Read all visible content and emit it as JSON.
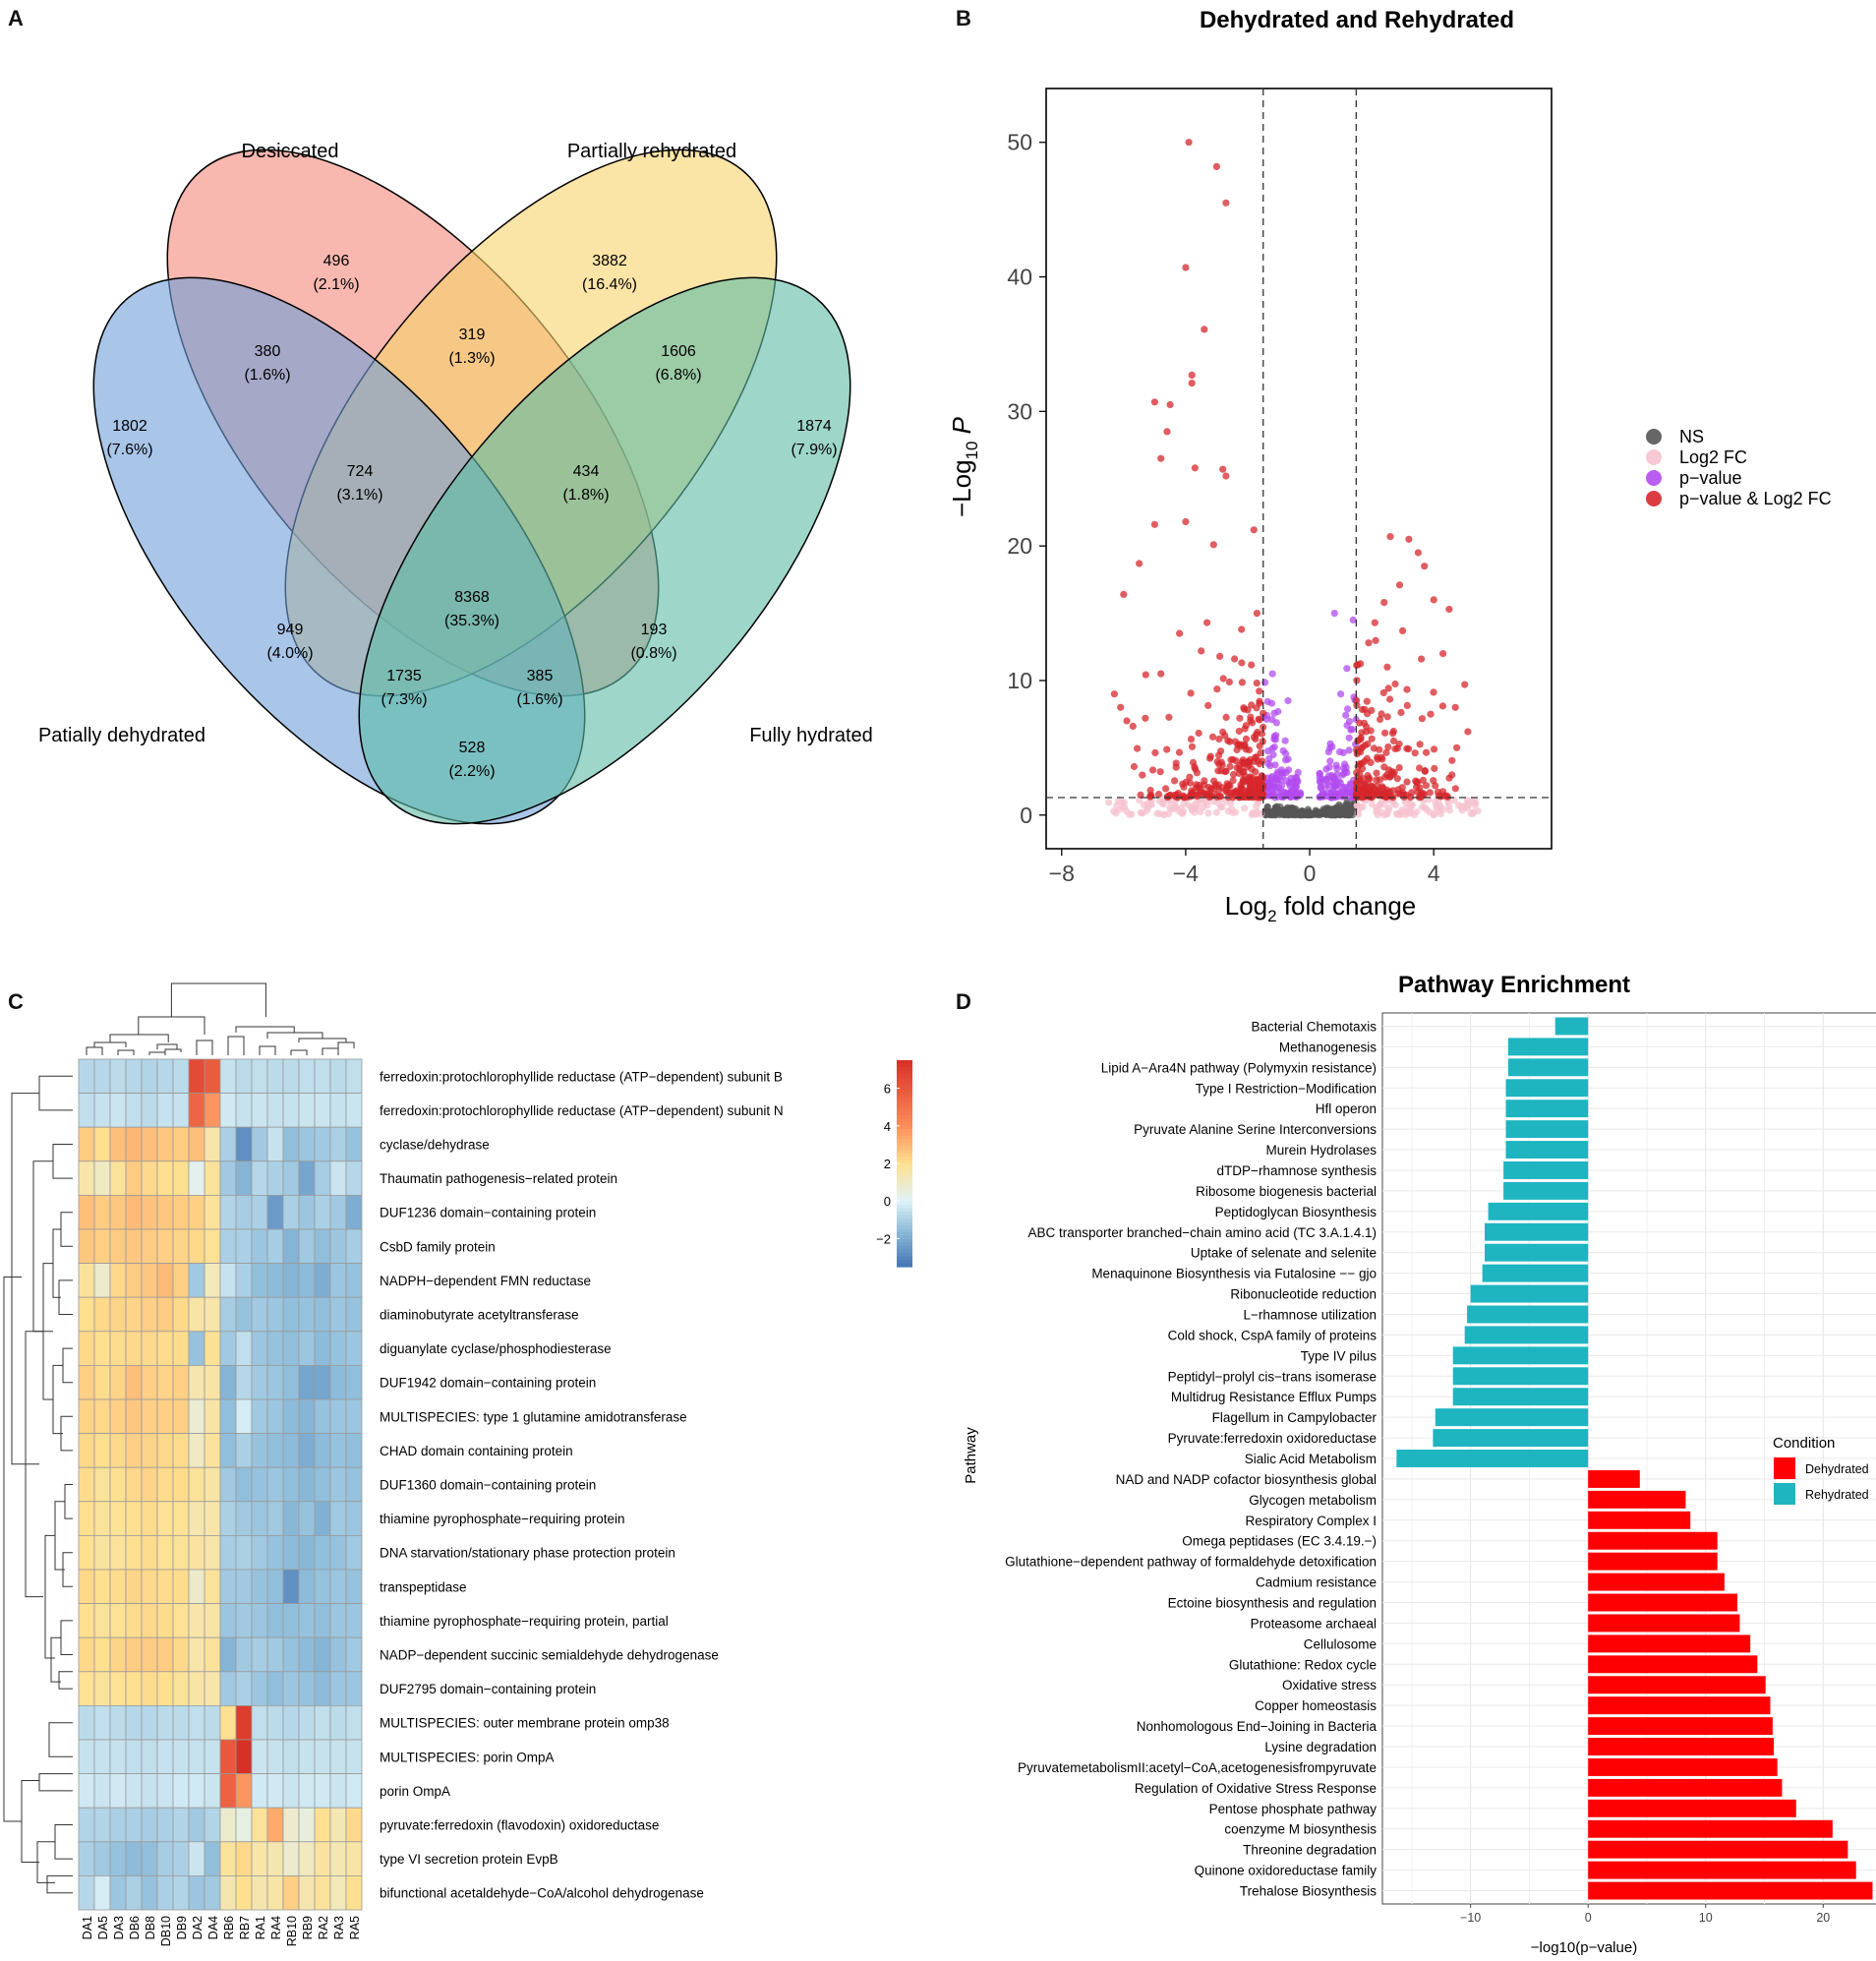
{
  "panels": {
    "a": {
      "letter": "A"
    },
    "b": {
      "letter": "B"
    },
    "c": {
      "letter": "C"
    },
    "d": {
      "letter": "D"
    }
  },
  "chart_data": [
    {
      "type": "venn",
      "sets": [
        "Desiccated",
        "Partially rehydrated",
        "Patially dehydrated",
        "Fully hydrated"
      ],
      "colors": {
        "desiccated": "#f4877a",
        "partially_rehydrated": "#f7d26a",
        "patially_dehydrated": "#6f9fd8",
        "fully_hydrated": "#5dbca6"
      },
      "regions": [
        {
          "id": "D",
          "count": "496",
          "pct": "(2.1%)"
        },
        {
          "id": "R",
          "count": "3882",
          "pct": "(16.4%)"
        },
        {
          "id": "P",
          "count": "1802",
          "pct": "(7.6%)"
        },
        {
          "id": "F",
          "count": "1874",
          "pct": "(7.9%)"
        },
        {
          "id": "PD",
          "count": "380",
          "pct": "(1.6%)"
        },
        {
          "id": "DR",
          "count": "319",
          "pct": "(1.3%)"
        },
        {
          "id": "RF",
          "count": "1606",
          "pct": "(6.8%)"
        },
        {
          "id": "PDR",
          "count": "724",
          "pct": "(3.1%)"
        },
        {
          "id": "DRF",
          "count": "434",
          "pct": "(1.8%)"
        },
        {
          "id": "PDRF",
          "count": "8368",
          "pct": "(35.3%)"
        },
        {
          "id": "PR",
          "count": "949",
          "pct": "(4.0%)"
        },
        {
          "id": "DF",
          "count": "193",
          "pct": "(0.8%)"
        },
        {
          "id": "PRF",
          "count": "1735",
          "pct": "(7.3%)"
        },
        {
          "id": "PDF",
          "count": "385",
          "pct": "(1.6%)"
        },
        {
          "id": "PF",
          "count": "528",
          "pct": "(2.2%)"
        }
      ]
    },
    {
      "type": "scatter",
      "title": "Dehydrated and Rehydrated",
      "xlabel_main": "Log",
      "xlabel_sub": "2",
      "xlabel_rest": " fold change",
      "ylabel_main": "−Log",
      "ylabel_sub": "10",
      "ylabel_rest": " P",
      "xlim": [
        -8.5,
        7.8
      ],
      "ylim": [
        -2.5,
        54
      ],
      "xticks": [
        -8,
        -4,
        0,
        4
      ],
      "xtick_labels": [
        "−8",
        "−4",
        "0",
        "4"
      ],
      "yticks": [
        0,
        10,
        20,
        30,
        40,
        50
      ],
      "ytick_labels": [
        "0",
        "10",
        "20",
        "30",
        "40",
        "50"
      ],
      "fc_cutoff": 1.5,
      "p_cutoff": 1.3,
      "legend": [
        {
          "label": "NS",
          "color": "#555555"
        },
        {
          "label": "Log2 FC",
          "color": "#f6c3cf"
        },
        {
          "label": "p−value",
          "color": "#b24bf0"
        },
        {
          "label": "p−value & Log2 FC",
          "color": "#d6272c"
        }
      ],
      "highlight_points": [
        [
          -3.9,
          50
        ],
        [
          -3.0,
          48.2
        ],
        [
          -2.7,
          45.5
        ],
        [
          -4.0,
          40.7
        ],
        [
          -3.4,
          36.1
        ],
        [
          -3.8,
          32.7
        ],
        [
          -3.8,
          32.1
        ],
        [
          -5.0,
          30.7
        ],
        [
          -4.5,
          30.5
        ],
        [
          -4.6,
          28.5
        ],
        [
          -4.8,
          26.5
        ],
        [
          -3.7,
          25.8
        ],
        [
          -2.8,
          25.7
        ],
        [
          -2.7,
          25.2
        ],
        [
          -4.0,
          21.8
        ],
        [
          -5.0,
          21.6
        ],
        [
          -1.8,
          21.2
        ],
        [
          -3.1,
          20.1
        ],
        [
          -5.5,
          18.7
        ],
        [
          -6.0,
          16.4
        ],
        [
          -6.3,
          9.0
        ],
        [
          -6.1,
          8.0
        ],
        [
          -5.9,
          7.0
        ],
        [
          -5.7,
          6.6
        ],
        [
          -5.3,
          7.2
        ],
        [
          -4.8,
          10.5
        ],
        [
          -4.2,
          13.5
        ],
        [
          -3.5,
          12.2
        ],
        [
          -2.9,
          11.8
        ],
        [
          -2.2,
          13.8
        ],
        [
          -1.7,
          15.0
        ],
        [
          2.6,
          20.7
        ],
        [
          3.2,
          20.5
        ],
        [
          3.5,
          19.5
        ],
        [
          3.7,
          18.5
        ],
        [
          2.9,
          17.1
        ],
        [
          2.4,
          15.8
        ],
        [
          4.0,
          16.0
        ],
        [
          4.5,
          15.3
        ],
        [
          2.1,
          14.3
        ],
        [
          3.0,
          13.7
        ],
        [
          4.3,
          12.0
        ],
        [
          5.0,
          9.7
        ],
        [
          3.6,
          11.6
        ],
        [
          2.5,
          11.0
        ],
        [
          4.7,
          8.0
        ],
        [
          5.1,
          6.2
        ],
        [
          3.9,
          7.5
        ],
        [
          1.9,
          12.8
        ],
        [
          1.4,
          14.5
        ],
        [
          0.8,
          15.0
        ],
        [
          1.2,
          10.9
        ],
        [
          1.0,
          9.0
        ],
        [
          -1.2,
          10.5
        ],
        [
          -0.7,
          8.5
        ]
      ]
    },
    {
      "type": "heatmap",
      "columns": [
        "DA1",
        "DA5",
        "DA3",
        "DB6",
        "DB8",
        "DB10",
        "DB9",
        "DA2",
        "DA4",
        "RB6",
        "RB7",
        "RA1",
        "RA4",
        "RB10",
        "RB9",
        "RA2",
        "RA3",
        "RA5"
      ],
      "rows": [
        "ferredoxin:protochlorophyllide reductase (ATP−dependent) subunit B",
        "ferredoxin:protochlorophyllide reductase (ATP−dependent) subunit N",
        "cyclase/dehydrase",
        "Thaumatin pathogenesis−related protein",
        "DUF1236 domain−containing protein",
        "CsbD family protein",
        "NADPH−dependent FMN reductase",
        "diaminobutyrate acetyltransferase",
        "diguanylate cyclase/phosphodiesterase",
        "DUF1942 domain−containing protein",
        "MULTISPECIES: type 1 glutamine amidotransferase",
        "CHAD domain containing protein",
        "DUF1360 domain−containing protein",
        "thiamine pyrophosphate−requiring protein",
        "DNA starvation/stationary phase protection protein",
        "transpeptidase",
        "thiamine pyrophosphate−requiring protein, partial",
        "NADP−dependent succinic semialdehyde dehydrogenase",
        "DUF2795 domain−containing protein",
        "MULTISPECIES: outer membrane protein omp38",
        "MULTISPECIES: porin OmpA",
        "porin OmpA",
        "pyruvate:ferredoxin (flavodoxin) oxidoreductase",
        "type VI secretion protein EvpB",
        "bifunctional acetaldehyde−CoA/alcohol dehydrogenase"
      ],
      "values": [
        [
          -0.8,
          -0.8,
          -0.7,
          -0.8,
          -0.9,
          -0.8,
          -0.7,
          6.5,
          5.8,
          -0.5,
          -0.7,
          -0.6,
          -0.7,
          -0.7,
          -0.6,
          -0.6,
          -0.7,
          -0.6
        ],
        [
          -0.6,
          -0.5,
          -0.4,
          -0.6,
          -0.7,
          -0.5,
          -0.5,
          5.5,
          3.8,
          -0.3,
          -0.5,
          -0.4,
          -0.5,
          -0.5,
          -0.4,
          -0.4,
          -0.5,
          -0.4
        ],
        [
          2.5,
          2.0,
          2.8,
          3.0,
          2.8,
          2.6,
          2.5,
          2.8,
          1.5,
          -1.0,
          -2.8,
          -1.2,
          -0.5,
          -1.5,
          -1.3,
          -1.2,
          -1.0,
          -1.4
        ],
        [
          1.5,
          1.0,
          1.8,
          2.5,
          2.2,
          2.0,
          2.0,
          0.2,
          1.8,
          -1.2,
          -1.8,
          -0.8,
          -1.0,
          -1.2,
          -2.2,
          -1.1,
          -0.4,
          -0.8
        ],
        [
          2.8,
          2.5,
          2.6,
          2.9,
          2.7,
          2.6,
          2.5,
          2.4,
          1.8,
          -0.9,
          -1.1,
          -1.0,
          -2.5,
          -1.0,
          -1.3,
          -1.0,
          -1.2,
          -2.0
        ],
        [
          2.6,
          2.4,
          2.5,
          2.6,
          2.5,
          2.4,
          2.3,
          2.2,
          1.9,
          -1.0,
          -1.0,
          -1.3,
          -1.1,
          -1.8,
          -1.2,
          -1.5,
          -1.3,
          -1.1
        ],
        [
          1.8,
          0.8,
          2.2,
          2.5,
          2.6,
          2.9,
          2.4,
          -1.2,
          1.2,
          -0.5,
          -1.0,
          -1.5,
          -1.6,
          -1.8,
          -1.6,
          -2.0,
          -1.3,
          -1.4
        ],
        [
          2.0,
          2.2,
          2.3,
          2.3,
          2.4,
          2.5,
          2.2,
          1.6,
          1.5,
          -1.1,
          -1.4,
          -1.2,
          -1.3,
          -1.5,
          -1.4,
          -1.5,
          -1.3,
          -1.4
        ],
        [
          2.2,
          2.0,
          2.1,
          2.2,
          2.2,
          2.1,
          2.1,
          -1.4,
          1.9,
          -1.2,
          -0.6,
          -1.3,
          -1.4,
          -1.5,
          -1.3,
          -1.6,
          -1.4,
          -1.3
        ],
        [
          2.4,
          2.1,
          2.3,
          2.8,
          2.4,
          2.3,
          2.4,
          1.4,
          1.6,
          -1.8,
          -0.8,
          -1.2,
          -1.3,
          -1.5,
          -2.2,
          -2.2,
          -1.6,
          -1.5
        ],
        [
          2.3,
          2.2,
          2.4,
          2.6,
          2.4,
          2.4,
          2.4,
          0.7,
          1.6,
          -1.5,
          -0.2,
          -1.2,
          -1.3,
          -1.6,
          -1.8,
          -1.4,
          -1.3,
          -1.3
        ],
        [
          2.2,
          2.0,
          2.2,
          2.4,
          2.3,
          2.2,
          2.1,
          1.0,
          1.8,
          -1.5,
          -1.0,
          -1.4,
          -1.5,
          -1.6,
          -2.0,
          -1.6,
          -1.4,
          -1.5
        ],
        [
          2.1,
          1.8,
          2.0,
          2.2,
          2.3,
          2.1,
          2.1,
          1.8,
          1.6,
          -1.2,
          -1.5,
          -1.4,
          -1.3,
          -1.5,
          -1.7,
          -1.5,
          -1.3,
          -1.4
        ],
        [
          2.0,
          1.8,
          1.9,
          2.0,
          2.1,
          1.9,
          1.9,
          1.4,
          1.5,
          -1.0,
          -1.2,
          -1.3,
          -1.2,
          -1.7,
          -1.4,
          -1.9,
          -1.2,
          -1.3
        ],
        [
          2.0,
          1.7,
          1.8,
          2.0,
          2.1,
          1.9,
          1.8,
          1.7,
          1.5,
          -1.1,
          -1.0,
          -1.2,
          -1.4,
          -1.6,
          -1.7,
          -1.5,
          -1.4,
          -1.2
        ],
        [
          2.2,
          2.0,
          2.1,
          2.3,
          2.2,
          2.1,
          2.1,
          0.9,
          1.8,
          -1.2,
          -1.2,
          -1.4,
          -1.5,
          -2.8,
          -1.6,
          -1.4,
          -1.3,
          -1.4
        ],
        [
          2.0,
          1.8,
          1.9,
          2.1,
          2.2,
          2.1,
          1.9,
          1.5,
          1.6,
          -1.3,
          -1.2,
          -1.3,
          -1.5,
          -1.5,
          -1.4,
          -1.5,
          -1.3,
          -1.3
        ],
        [
          2.2,
          2.0,
          2.3,
          2.5,
          2.5,
          2.5,
          2.2,
          1.5,
          1.8,
          -1.8,
          -1.2,
          -1.1,
          -1.2,
          -1.4,
          -1.6,
          -1.8,
          -1.4,
          -1.2
        ],
        [
          1.9,
          1.8,
          1.9,
          2.0,
          2.1,
          2.0,
          1.8,
          1.6,
          1.5,
          -1.2,
          -1.0,
          -1.3,
          -1.5,
          -1.3,
          -1.4,
          -1.6,
          -1.3,
          -1.3
        ],
        [
          -0.7,
          -0.6,
          -0.7,
          -0.8,
          -0.8,
          -0.7,
          -0.7,
          -0.6,
          -0.7,
          2.0,
          7.0,
          -0.6,
          -0.7,
          -0.8,
          -0.7,
          -0.6,
          -0.7,
          -0.6
        ],
        [
          -0.5,
          -0.5,
          -0.5,
          -0.6,
          -0.6,
          -0.5,
          -0.5,
          -0.5,
          -0.5,
          6.0,
          7.5,
          -0.4,
          -0.5,
          -0.6,
          -0.5,
          -0.5,
          -0.5,
          -0.5
        ],
        [
          -0.3,
          -0.4,
          -0.3,
          -0.4,
          -0.5,
          -0.4,
          -0.3,
          -0.3,
          -0.4,
          5.6,
          3.8,
          -0.3,
          -0.3,
          -0.4,
          -0.3,
          -0.3,
          -0.4,
          -0.3
        ],
        [
          -0.9,
          -0.9,
          -1.0,
          -1.0,
          -1.1,
          -1.0,
          -0.9,
          -1.2,
          -0.9,
          0.8,
          0.4,
          1.8,
          3.3,
          0.8,
          0.5,
          2.0,
          1.3,
          2.2
        ],
        [
          -1.0,
          -1.2,
          -1.4,
          -1.6,
          -1.5,
          -1.1,
          -1.0,
          -0.4,
          -1.5,
          1.8,
          2.2,
          1.5,
          1.4,
          0.8,
          1.1,
          1.7,
          1.3,
          1.6
        ],
        [
          -0.8,
          -0.2,
          -1.3,
          -1.0,
          -1.4,
          -1.0,
          -0.9,
          -1.3,
          -1.2,
          1.4,
          2.0,
          1.4,
          1.6,
          2.4,
          1.4,
          1.8,
          1.2,
          2.0
        ]
      ],
      "color_scale": [
        -3.5,
        7.5
      ],
      "colorbar_ticks": [
        6,
        4,
        2,
        0,
        -2
      ],
      "colorbar_tick_labels": [
        "6",
        "4",
        "2",
        "0",
        "−2"
      ]
    },
    {
      "type": "bar",
      "orientation": "horizontal",
      "title": "Pathway Enrichment",
      "xlabel": "−log10(p−value)",
      "ylabel": "Pathway",
      "xlim": [
        -17.5,
        26
      ],
      "xticks": [
        -10,
        0,
        10,
        20
      ],
      "xtick_labels": [
        "−10",
        "0",
        "10",
        "20"
      ],
      "legend_title": "Condition",
      "legend": [
        {
          "label": "Dehydrated",
          "color": "#ff0000"
        },
        {
          "label": "Rehydrated",
          "color": "#1eb5c1"
        }
      ],
      "categories": [
        "Bacterial Chemotaxis",
        "Methanogenesis",
        "Lipid A−Ara4N pathway (Polymyxin resistance)",
        "Type I Restriction−Modification",
        "Hfl operon",
        "Pyruvate Alanine Serine Interconversions",
        "Murein Hydrolases",
        "dTDP−rhamnose synthesis",
        "Ribosome biogenesis bacterial",
        "Peptidoglycan Biosynthesis",
        "ABC transporter branched−chain amino acid (TC 3.A.1.4.1)",
        "Uptake of selenate and selenite",
        "Menaquinone Biosynthesis via Futalosine −− gjo",
        "Ribonucleotide reduction",
        "L−rhamnose utilization",
        "Cold shock, CspA family of proteins",
        "Type IV pilus",
        "Peptidyl−prolyl cis−trans isomerase",
        "Multidrug Resistance Efflux Pumps",
        "Flagellum in Campylobacter",
        "Pyruvate:ferredoxin oxidoreductase",
        "Sialic Acid Metabolism",
        "NAD and NADP cofactor biosynthesis global",
        "Glycogen metabolism",
        "Respiratory Complex I",
        "Omega peptidases (EC 3.4.19.−)",
        "Glutathione−dependent pathway of formaldehyde detoxification",
        "Cadmium resistance",
        "Ectoine biosynthesis and regulation",
        "Proteasome archaeal",
        "Cellulosome",
        "Glutathione: Redox cycle",
        "Oxidative stress",
        "Copper homeostasis",
        "Nonhomologous End−Joining in Bacteria",
        "Lysine degradation",
        "PyruvatemetabolismII:acetyl−CoA,acetogenesisfrompyruvate",
        "Regulation of Oxidative Stress Response",
        "Pentose phosphate pathway",
        "coenzyme M biosynthesis",
        "Threonine degradation",
        "Quinone oxidoreductase family",
        "Trehalose Biosynthesis"
      ],
      "values": [
        -2.8,
        -6.8,
        -6.8,
        -7.0,
        -7.0,
        -7.0,
        -7.0,
        -7.2,
        -7.2,
        -8.5,
        -8.8,
        -8.8,
        -9.0,
        -10.0,
        -10.3,
        -10.5,
        -11.5,
        -11.5,
        -11.5,
        -13.0,
        -13.2,
        -16.3,
        4.4,
        8.3,
        8.7,
        11.0,
        11.0,
        11.6,
        12.7,
        12.9,
        13.8,
        14.4,
        15.1,
        15.5,
        15.7,
        15.8,
        16.1,
        16.5,
        17.7,
        20.8,
        22.1,
        22.8,
        24.2
      ],
      "conditions": [
        "Rehydrated",
        "Rehydrated",
        "Rehydrated",
        "Rehydrated",
        "Rehydrated",
        "Rehydrated",
        "Rehydrated",
        "Rehydrated",
        "Rehydrated",
        "Rehydrated",
        "Rehydrated",
        "Rehydrated",
        "Rehydrated",
        "Rehydrated",
        "Rehydrated",
        "Rehydrated",
        "Rehydrated",
        "Rehydrated",
        "Rehydrated",
        "Rehydrated",
        "Rehydrated",
        "Rehydrated",
        "Dehydrated",
        "Dehydrated",
        "Dehydrated",
        "Dehydrated",
        "Dehydrated",
        "Dehydrated",
        "Dehydrated",
        "Dehydrated",
        "Dehydrated",
        "Dehydrated",
        "Dehydrated",
        "Dehydrated",
        "Dehydrated",
        "Dehydrated",
        "Dehydrated",
        "Dehydrated",
        "Dehydrated",
        "Dehydrated",
        "Dehydrated",
        "Dehydrated",
        "Dehydrated"
      ]
    }
  ]
}
